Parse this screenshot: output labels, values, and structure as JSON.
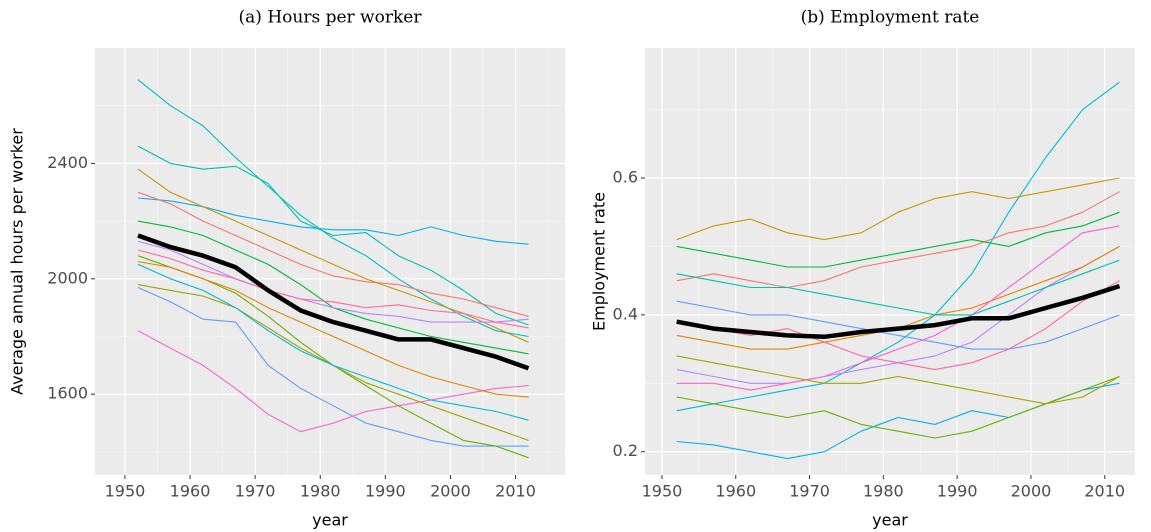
{
  "chart_data": [
    {
      "type": "line",
      "title": "(a) Hours per worker",
      "xlabel": "year",
      "ylabel": "Average annual hours per worker",
      "x": [
        1952,
        1957,
        1962,
        1967,
        1972,
        1977,
        1982,
        1987,
        1992,
        1997,
        2002,
        2007,
        2012
      ],
      "xlim": [
        1945.4,
        2017.6
      ],
      "ylim": [
        1320,
        2800
      ],
      "xticks": [
        1950,
        1960,
        1970,
        1980,
        1990,
        2000,
        2010
      ],
      "yticks": [
        1600,
        2000,
        2400
      ],
      "grid": true,
      "series": [
        {
          "color": "#00BFC4",
          "values": [
            2690,
            2600,
            2530,
            2420,
            2320,
            2220,
            2140,
            2080,
            2000,
            1930,
            1870,
            1820,
            1800
          ]
        },
        {
          "color": "#00B0F6",
          "values": [
            2280,
            2270,
            2250,
            2220,
            2200,
            2180,
            2170,
            2170,
            2150,
            2180,
            2150,
            2130,
            2120
          ]
        },
        {
          "color": "#00C0AF",
          "values": [
            2460,
            2400,
            2380,
            2390,
            2330,
            2200,
            2150,
            2160,
            2080,
            2030,
            1960,
            1880,
            1840
          ]
        },
        {
          "color": "#F8766D",
          "values": [
            2300,
            2260,
            2200,
            2150,
            2100,
            2050,
            2010,
            1990,
            1980,
            1950,
            1930,
            1900,
            1870
          ]
        },
        {
          "color": "#C99800",
          "values": [
            2380,
            2300,
            2250,
            2200,
            2150,
            2100,
            2050,
            2000,
            1960,
            1920,
            1880,
            1830,
            1780
          ]
        },
        {
          "color": "#619CFF",
          "values": [
            1970,
            1920,
            1860,
            1850,
            1700,
            1620,
            1560,
            1500,
            1470,
            1440,
            1420,
            1420,
            1420
          ]
        },
        {
          "color": "#FD61D1",
          "values": [
            1820,
            1760,
            1700,
            1620,
            1530,
            1470,
            1500,
            1540,
            1560,
            1580,
            1600,
            1620,
            1630
          ]
        },
        {
          "color": "#6BB100",
          "values": [
            2080,
            2040,
            2000,
            1950,
            1870,
            1780,
            1700,
            1630,
            1560,
            1500,
            1440,
            1420,
            1380
          ]
        },
        {
          "color": "#00BA38",
          "values": [
            2200,
            2180,
            2150,
            2100,
            2050,
            1980,
            1900,
            1860,
            1830,
            1800,
            1780,
            1760,
            1740
          ]
        },
        {
          "color": "#B983FF",
          "values": [
            2130,
            2100,
            2050,
            2000,
            1960,
            1930,
            1900,
            1880,
            1870,
            1850,
            1850,
            1850,
            1860
          ]
        },
        {
          "color": "#E58700",
          "values": [
            2060,
            2040,
            2000,
            1960,
            1900,
            1850,
            1800,
            1750,
            1700,
            1660,
            1630,
            1600,
            1590
          ]
        },
        {
          "color": "#A3A500",
          "values": [
            1980,
            1960,
            1940,
            1900,
            1830,
            1760,
            1700,
            1640,
            1600,
            1560,
            1520,
            1480,
            1440
          ]
        },
        {
          "color": "#FF67A4",
          "values": [
            2100,
            2070,
            2030,
            2000,
            1960,
            1930,
            1920,
            1900,
            1910,
            1890,
            1880,
            1850,
            1830
          ]
        },
        {
          "color": "#00BCD8",
          "values": [
            2050,
            2000,
            1960,
            1900,
            1820,
            1750,
            1700,
            1660,
            1620,
            1580,
            1560,
            1540,
            1510
          ]
        },
        {
          "color": "#000000",
          "values": [
            2150,
            2110,
            2080,
            2040,
            1960,
            1890,
            1850,
            1820,
            1790,
            1790,
            1760,
            1730,
            1690
          ]
        }
      ]
    },
    {
      "type": "line",
      "title": "(b) Employment rate",
      "xlabel": "year",
      "ylabel": "Employment rate",
      "x": [
        1952,
        1957,
        1962,
        1967,
        1972,
        1977,
        1982,
        1987,
        1992,
        1997,
        2002,
        2007,
        2012
      ],
      "xlim": [
        1947.7,
        2014.1
      ],
      "ylim": [
        0.166,
        0.79
      ],
      "xticks": [
        1950,
        1960,
        1970,
        1980,
        1990,
        2000,
        2010
      ],
      "yticks": [
        0.2,
        0.4,
        0.6
      ],
      "grid": true,
      "series": [
        {
          "color": "#00BCD8",
          "values": [
            0.26,
            0.27,
            0.28,
            0.29,
            0.3,
            0.33,
            0.36,
            0.4,
            0.46,
            0.55,
            0.63,
            0.7,
            0.74
          ]
        },
        {
          "color": "#C99800",
          "values": [
            0.51,
            0.53,
            0.54,
            0.52,
            0.51,
            0.52,
            0.55,
            0.57,
            0.58,
            0.57,
            0.58,
            0.59,
            0.6
          ]
        },
        {
          "color": "#00B0F6",
          "values": [
            0.215,
            0.21,
            0.2,
            0.19,
            0.2,
            0.23,
            0.25,
            0.24,
            0.26,
            0.25,
            0.27,
            0.29,
            0.3
          ]
        },
        {
          "color": "#F8766D",
          "values": [
            0.45,
            0.46,
            0.45,
            0.44,
            0.45,
            0.47,
            0.48,
            0.49,
            0.5,
            0.52,
            0.53,
            0.55,
            0.58
          ]
        },
        {
          "color": "#00BA38",
          "values": [
            0.5,
            0.49,
            0.48,
            0.47,
            0.47,
            0.48,
            0.49,
            0.5,
            0.51,
            0.5,
            0.52,
            0.53,
            0.55
          ]
        },
        {
          "color": "#6BB100",
          "values": [
            0.28,
            0.27,
            0.26,
            0.25,
            0.26,
            0.24,
            0.23,
            0.22,
            0.23,
            0.25,
            0.27,
            0.29,
            0.31
          ]
        },
        {
          "color": "#B983FF",
          "values": [
            0.32,
            0.31,
            0.3,
            0.3,
            0.31,
            0.32,
            0.33,
            0.34,
            0.36,
            0.4,
            0.44,
            0.47,
            0.5
          ]
        },
        {
          "color": "#E58700",
          "values": [
            0.37,
            0.36,
            0.35,
            0.35,
            0.36,
            0.37,
            0.38,
            0.4,
            0.41,
            0.43,
            0.45,
            0.47,
            0.5
          ]
        },
        {
          "color": "#619CFF",
          "values": [
            0.42,
            0.41,
            0.4,
            0.4,
            0.39,
            0.38,
            0.37,
            0.36,
            0.35,
            0.35,
            0.36,
            0.38,
            0.4
          ]
        },
        {
          "color": "#FD61D1",
          "values": [
            0.3,
            0.3,
            0.29,
            0.3,
            0.31,
            0.33,
            0.35,
            0.37,
            0.4,
            0.44,
            0.48,
            0.52,
            0.53
          ]
        },
        {
          "color": "#00C0AF",
          "values": [
            0.46,
            0.45,
            0.44,
            0.44,
            0.43,
            0.42,
            0.41,
            0.4,
            0.4,
            0.42,
            0.44,
            0.46,
            0.48
          ]
        },
        {
          "color": "#A3A500",
          "values": [
            0.34,
            0.33,
            0.32,
            0.31,
            0.3,
            0.3,
            0.31,
            0.3,
            0.29,
            0.28,
            0.27,
            0.28,
            0.31
          ]
        },
        {
          "color": "#FF67A4",
          "values": [
            0.39,
            0.38,
            0.37,
            0.38,
            0.36,
            0.34,
            0.33,
            0.32,
            0.33,
            0.35,
            0.38,
            0.42,
            0.45
          ]
        },
        {
          "color": "#000000",
          "values": [
            0.39,
            0.38,
            0.375,
            0.37,
            0.368,
            0.375,
            0.38,
            0.385,
            0.395,
            0.395,
            0.41,
            0.425,
            0.442
          ]
        }
      ]
    }
  ]
}
